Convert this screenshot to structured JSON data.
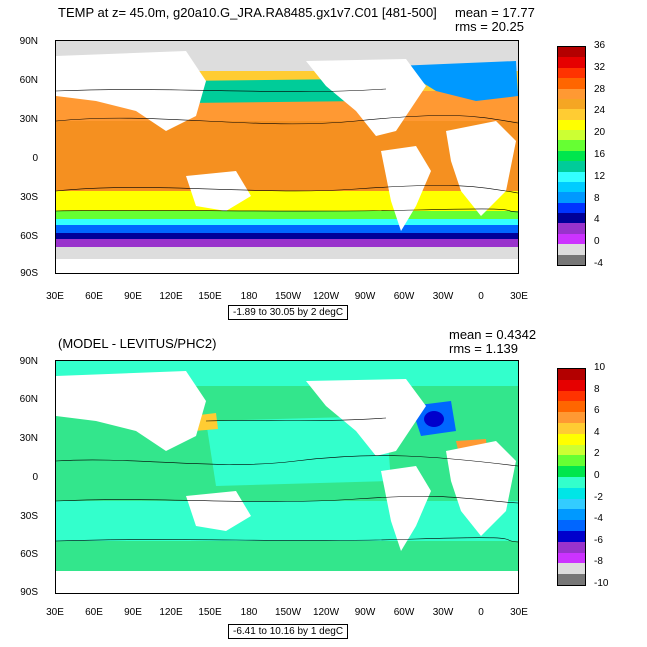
{
  "panel1": {
    "title": "TEMP at z=  45.0m, g20a10.G_JRA.RA8485.gx1v7.C01 [481-500]",
    "mean_label": "mean = 17.77",
    "rms_label": "rms = 20.25",
    "range_label": "-1.89 to 30.05 by 2 degC",
    "lat_labels": [
      "90N",
      "60N",
      "30N",
      "0",
      "30S",
      "60S",
      "90S"
    ],
    "lon_labels": [
      "30E",
      "60E",
      "90E",
      "120E",
      "150E",
      "180",
      "150W",
      "120W",
      "90W",
      "60W",
      "30W",
      "0",
      "30E"
    ],
    "colorbar": {
      "labels": [
        "36",
        "32",
        "28",
        "24",
        "20",
        "16",
        "12",
        "8",
        "4",
        "0",
        "-4"
      ],
      "colors": [
        "#b30000",
        "#e60000",
        "#ff3300",
        "#ff6600",
        "#ff9933",
        "#f5a623",
        "#ffcc33",
        "#ffff00",
        "#ccff33",
        "#66ff33",
        "#00e64d",
        "#00cc99",
        "#33ffff",
        "#00ccff",
        "#0099ff",
        "#0033ff",
        "#000099",
        "#9933cc",
        "#cc33ff",
        "#dddddd",
        "#777777"
      ]
    }
  },
  "panel2": {
    "title": "(MODEL - LEVITUS/PHC2)",
    "mean_label": "mean = 0.4342",
    "rms_label": "rms = 1.139",
    "range_label": "-6.41 to 10.16 by 1 degC",
    "lat_labels": [
      "90N",
      "60N",
      "30N",
      "0",
      "30S",
      "60S",
      "90S"
    ],
    "lon_labels": [
      "30E",
      "60E",
      "90E",
      "120E",
      "150E",
      "180",
      "150W",
      "120W",
      "90W",
      "60W",
      "30W",
      "0",
      "30E"
    ],
    "colorbar": {
      "labels": [
        "10",
        "8",
        "6",
        "4",
        "2",
        "0",
        "-2",
        "-4",
        "-6",
        "-8",
        "-10"
      ],
      "colors": [
        "#b30000",
        "#e60000",
        "#ff3300",
        "#ff6600",
        "#ff9933",
        "#ffcc33",
        "#ffff00",
        "#ccff33",
        "#66ff33",
        "#00e64d",
        "#33ffcc",
        "#00e6e6",
        "#33ccff",
        "#0099ff",
        "#0066ff",
        "#0000cc",
        "#9933cc",
        "#cc33ff",
        "#dddddd",
        "#777777"
      ]
    }
  }
}
